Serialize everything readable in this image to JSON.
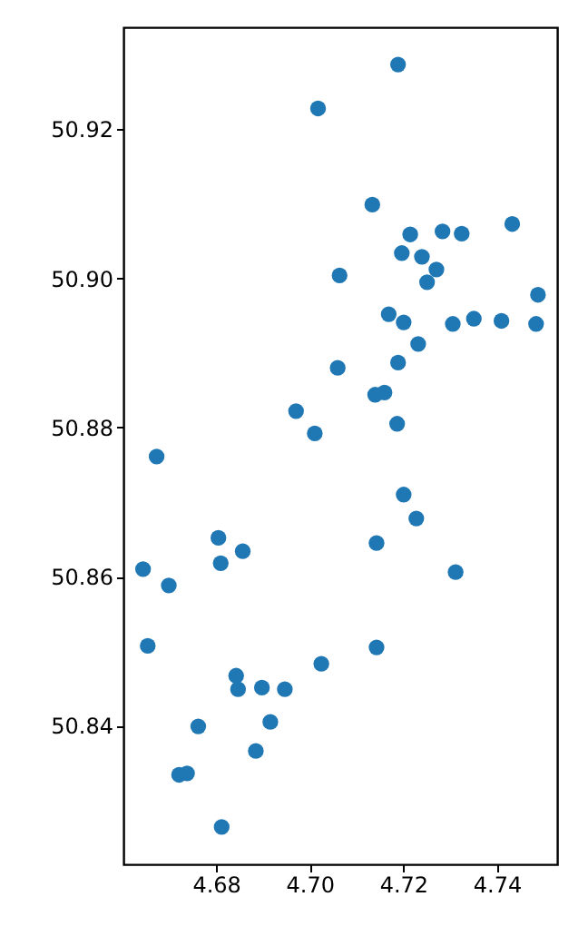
{
  "chart_data": {
    "type": "scatter",
    "marker": "circle",
    "grid": false,
    "xlim": [
      4.6602,
      4.7529
    ],
    "ylim": [
      50.8214,
      50.9337
    ],
    "xticks": [
      {
        "value": 4.68,
        "label": "4.68"
      },
      {
        "value": 4.7,
        "label": "4.70"
      },
      {
        "value": 4.72,
        "label": "4.72"
      },
      {
        "value": 4.74,
        "label": "4.74"
      }
    ],
    "yticks": [
      {
        "value": 50.84,
        "label": "50.84"
      },
      {
        "value": 50.86,
        "label": "50.86"
      },
      {
        "value": 50.88,
        "label": "50.88"
      },
      {
        "value": 50.9,
        "label": "50.90"
      },
      {
        "value": 50.92,
        "label": "50.92"
      }
    ],
    "series": [
      {
        "color": "#1f77b4",
        "x": [
          4.7189,
          4.7018,
          4.7134,
          4.7215,
          4.7284,
          4.7325,
          4.7433,
          4.7197,
          4.724,
          4.7271,
          4.7251,
          4.7064,
          4.7488,
          4.7169,
          4.7201,
          4.7306,
          4.7351,
          4.741,
          4.7484,
          4.7232,
          4.706,
          4.7189,
          4.716,
          4.714,
          4.6971,
          4.7011,
          4.7187,
          4.6673,
          4.7201,
          4.7228,
          4.6805,
          4.7143,
          4.6857,
          4.681,
          4.6644,
          4.7312,
          4.6699,
          4.6654,
          4.7143,
          4.7025,
          4.6843,
          4.6847,
          4.6898,
          4.6947,
          4.6762,
          4.6916,
          4.6885,
          4.6721,
          4.6738,
          4.6812
        ],
        "values": [
          50.9287,
          50.9228,
          50.9099,
          50.9059,
          50.9063,
          50.906,
          50.9073,
          50.9034,
          50.9029,
          50.9012,
          50.8995,
          50.9004,
          50.8978,
          50.8952,
          50.8941,
          50.8939,
          50.8946,
          50.8943,
          50.8939,
          50.8912,
          50.888,
          50.8887,
          50.8847,
          50.8844,
          50.8822,
          50.8792,
          50.8805,
          50.8761,
          50.871,
          50.8678,
          50.8652,
          50.8645,
          50.8634,
          50.8618,
          50.861,
          50.8606,
          50.8588,
          50.8507,
          50.8505,
          50.8483,
          50.8467,
          50.8449,
          50.8451,
          50.8449,
          50.8399,
          50.8405,
          50.8366,
          50.8334,
          50.8336,
          50.8264
        ]
      }
    ]
  }
}
